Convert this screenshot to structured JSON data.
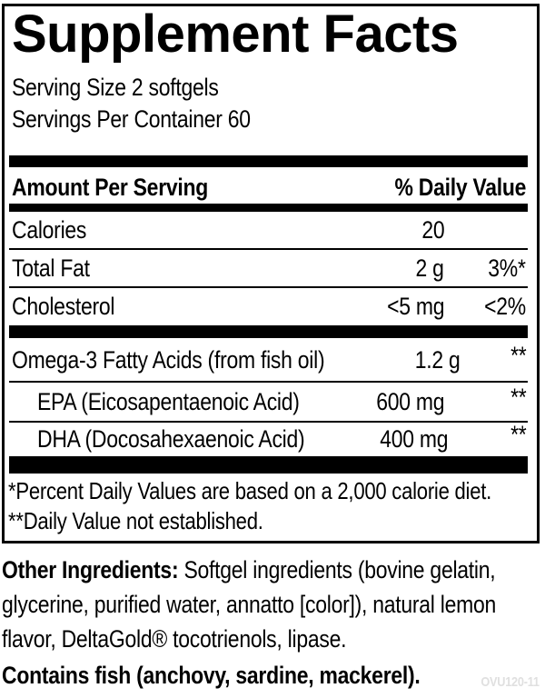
{
  "colors": {
    "text": "#000000",
    "rule": "#000000",
    "product_code_gray": "#e0e0e0"
  },
  "label": {
    "title": "Supplement Facts",
    "serving_size": "Serving Size 2 softgels",
    "servings_per_container": "Servings Per Container 60",
    "header": {
      "left": "Amount Per Serving",
      "right": "% Daily Value"
    },
    "rows": [
      {
        "name": "Calories",
        "amount": "20",
        "dv": ""
      },
      {
        "name": "Total Fat",
        "amount": "2 g",
        "dv": "3%*"
      },
      {
        "name": "Cholesterol",
        "amount": "<5 mg",
        "dv": "<2%"
      }
    ],
    "rows2": [
      {
        "name": "Omega-3 Fatty Acids (from fish oil)",
        "amount": "1.2 g",
        "dv": "**"
      },
      {
        "name": "EPA (Eicosapentaenoic Acid)",
        "amount": "600 mg",
        "dv": "**"
      },
      {
        "name": "DHA (Docosahexaenoic Acid)",
        "amount": "400 mg",
        "dv": "**"
      }
    ],
    "footnotes": [
      "*Percent Daily Values are based on a 2,000 calorie diet.",
      "**Daily Value not established."
    ]
  },
  "other_ingredients": {
    "label": "Other Ingredients:",
    "line1_rest": " Softgel ingredients (bovine gelatin,",
    "line2": "glycerine, purified water, annatto [color]), natural lemon",
    "line3": "flavor, DeltaGold® tocotrienols, lipase."
  },
  "allergen": "Contains fish (anchovy, sardine, mackerel).",
  "product_code": "OVU120-11"
}
